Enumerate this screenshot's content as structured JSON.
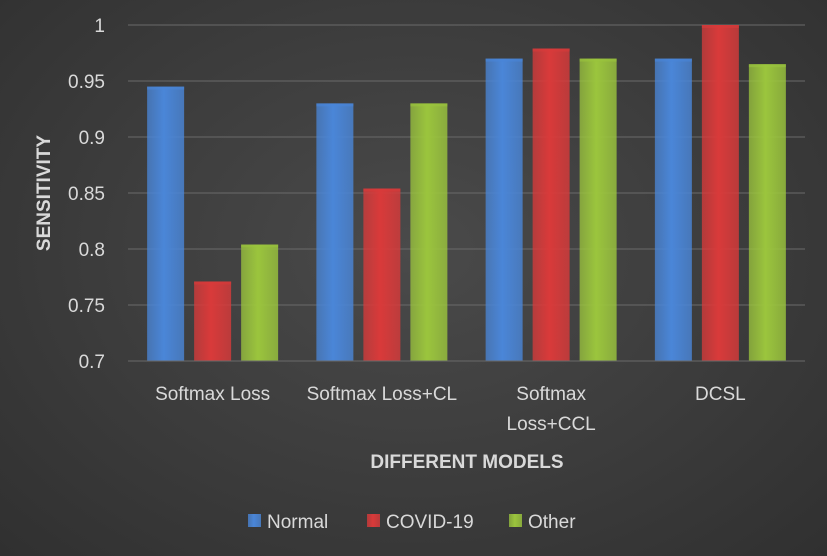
{
  "chart_data": {
    "type": "bar",
    "categories": [
      "Softmax Loss",
      "Softmax Loss+CL",
      "Softmax\nLoss+CCL",
      "DCSL"
    ],
    "series": [
      {
        "name": "Normal",
        "values": [
          0.945,
          0.93,
          0.97,
          0.97
        ]
      },
      {
        "name": "COVID-19",
        "values": [
          0.771,
          0.854,
          0.979,
          1.0
        ]
      },
      {
        "name": "Other",
        "values": [
          0.804,
          0.93,
          0.97,
          0.965
        ]
      }
    ],
    "title": "",
    "xlabel": "DIFFERENT MODELS",
    "ylabel": "SENSITIVITY",
    "ylim": [
      0.7,
      1.0
    ],
    "yticks": [
      "0.7",
      "0.75",
      "0.8",
      "0.85",
      "0.9",
      "0.95",
      "1"
    ],
    "grid": true,
    "legend_position": "bottom",
    "colors": {
      "Normal": "#4a86d8",
      "COVID-19": "#d93a3a",
      "Other": "#9bc53d",
      "background": "#3b3b3b",
      "gridline": "#6a6a6a",
      "text": "#d9d9d9"
    }
  }
}
